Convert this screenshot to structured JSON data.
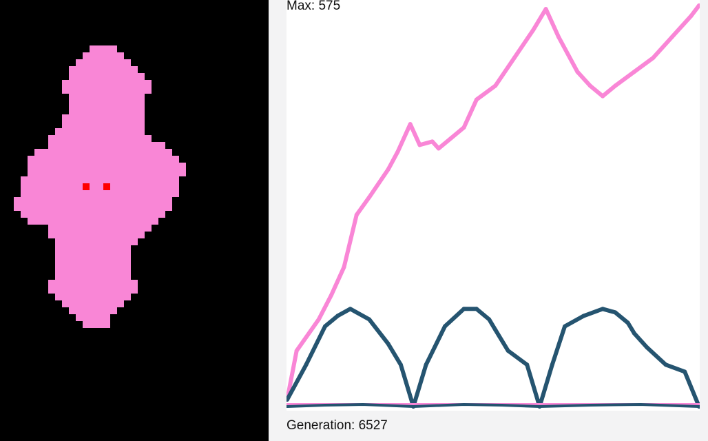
{
  "colors": {
    "background": "#000000",
    "creature": "#f986d6",
    "eyes": "#ff0000",
    "series_pink": "#f986d6",
    "series_dark": "#255470"
  },
  "stats": {
    "max_text": "Max: 575",
    "generation_text": "Generation: 6527"
  },
  "chart_data": {
    "type": "line",
    "title": "",
    "xlabel": "",
    "ylabel": "",
    "xlim": [
      0,
      6527
    ],
    "ylim": [
      0,
      575
    ],
    "grid": false,
    "series": [
      {
        "color": "#f986d6",
        "x": [
          0,
          150,
          500,
          700,
          900,
          1100,
          1300,
          1600,
          1750,
          1950,
          2100,
          2300,
          2400,
          2600,
          2800,
          3000,
          3300,
          3600,
          3900,
          4100,
          4300,
          4600,
          4800,
          5000,
          5200,
          5500,
          5800,
          6100,
          6400,
          6527
        ],
        "y": [
          10,
          80,
          125,
          160,
          200,
          275,
          300,
          340,
          365,
          405,
          375,
          380,
          370,
          385,
          400,
          440,
          460,
          500,
          540,
          570,
          530,
          480,
          460,
          445,
          460,
          480,
          500,
          530,
          560,
          575
        ]
      },
      {
        "color": "#255470",
        "x": [
          0,
          300,
          600,
          800,
          1000,
          1100,
          1300,
          1600,
          1800,
          2000,
          2200,
          2500,
          2800,
          3000,
          3200,
          3300,
          3500,
          3800,
          4000,
          4200,
          4400,
          4700,
          5000,
          5200,
          5400,
          5500,
          5700,
          6000,
          6300,
          6527
        ],
        "y": [
          10,
          60,
          115,
          130,
          140,
          135,
          125,
          90,
          60,
          0,
          60,
          115,
          140,
          140,
          125,
          110,
          80,
          60,
          0,
          60,
          115,
          130,
          140,
          135,
          120,
          105,
          85,
          60,
          50,
          0
        ]
      },
      {
        "color": "#f986d6",
        "x": [
          0,
          6527
        ],
        "y": [
          3,
          3
        ]
      },
      {
        "color": "#255470",
        "x": [
          0,
          600,
          1200,
          2000,
          2800,
          3400,
          4000,
          4800,
          5600,
          6527
        ],
        "y": [
          0,
          2,
          3,
          0,
          3,
          2,
          0,
          2,
          3,
          0
        ]
      }
    ]
  }
}
